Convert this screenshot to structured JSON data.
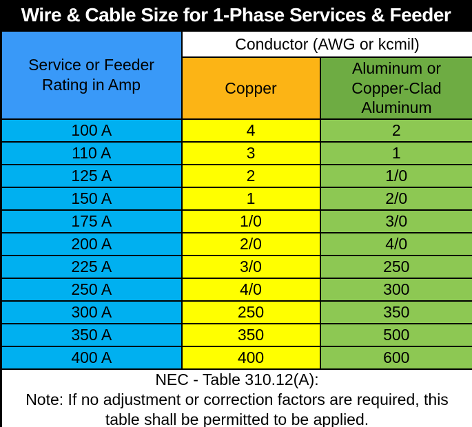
{
  "colors": {
    "frame_border": "#000000",
    "title_bg": "#000000",
    "title_text": "#ffffff",
    "rating_header_bg": "#3999F8",
    "rating_data_bg": "#00B0F0",
    "copper_header_bg": "#FCB415",
    "copper_data_bg": "#FFFF00",
    "aluminum_header_bg": "#6EAC43",
    "aluminum_data_bg": "#8DC853",
    "grid_line": "#000000"
  },
  "chart_data": {
    "type": "table",
    "title": "Wire & Cable Size for 1-Phase Services & Feeder",
    "header": {
      "rating": "Service or Feeder\nRating in Amp",
      "conductor_group": "Conductor (AWG or kcmil)",
      "copper": "Copper",
      "aluminum": "Aluminum or\nCopper-Clad\nAluminum"
    },
    "rows": [
      {
        "rating": "100 A",
        "copper": "4",
        "aluminum": "2"
      },
      {
        "rating": "110 A",
        "copper": "3",
        "aluminum": "1"
      },
      {
        "rating": "125 A",
        "copper": "2",
        "aluminum": "1/0"
      },
      {
        "rating": "150 A",
        "copper": "1",
        "aluminum": "2/0"
      },
      {
        "rating": "175 A",
        "copper": "1/0",
        "aluminum": "3/0"
      },
      {
        "rating": "200 A",
        "copper": "2/0",
        "aluminum": "4/0"
      },
      {
        "rating": "225 A",
        "copper": "3/0",
        "aluminum": "250"
      },
      {
        "rating": "250 A",
        "copper": "4/0",
        "aluminum": "300"
      },
      {
        "rating": "300 A",
        "copper": "250",
        "aluminum": "350"
      },
      {
        "rating": "350 A",
        "copper": "350",
        "aluminum": "500"
      },
      {
        "rating": "400 A",
        "copper": "400",
        "aluminum": "600"
      }
    ],
    "footer": {
      "reference": "NEC - Table 310.12(A):",
      "note": "Note: If no adjustment or correction factors are required, this table shall be permitted to be applied."
    }
  }
}
